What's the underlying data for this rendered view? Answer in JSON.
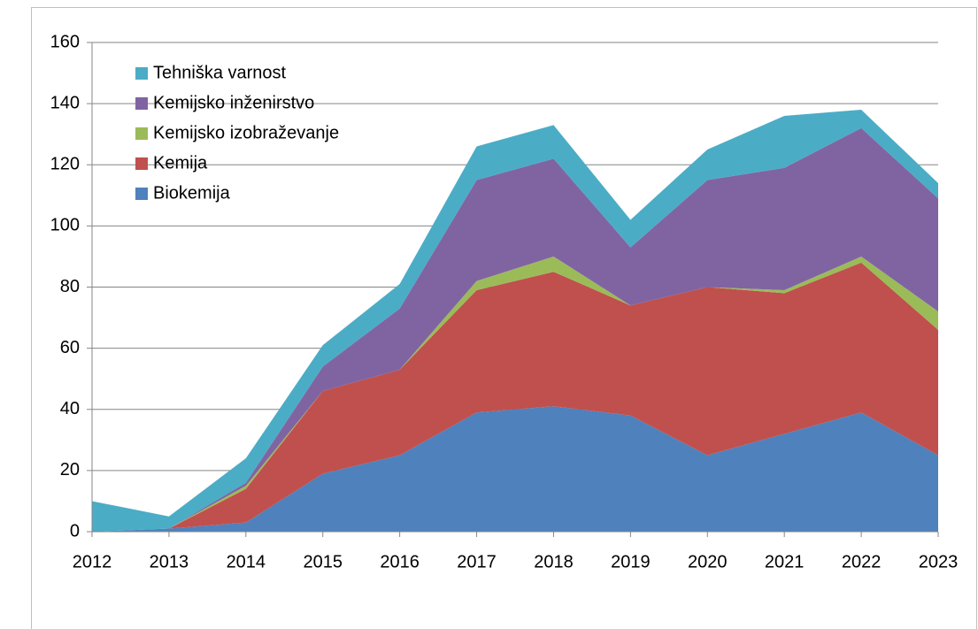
{
  "chart_data": {
    "type": "stacked_area",
    "categories": [
      "2012",
      "2013",
      "2014",
      "2015",
      "2016",
      "2017",
      "2018",
      "2019",
      "2020",
      "2021",
      "2022",
      "2023"
    ],
    "series": [
      {
        "name": "Biokemija",
        "color": "#4f81bd",
        "values": [
          0,
          1,
          3,
          19,
          25,
          39,
          41,
          38,
          25,
          32,
          39,
          25
        ]
      },
      {
        "name": "Kemija",
        "color": "#c0504d",
        "values": [
          0,
          0,
          11,
          27,
          28,
          40,
          44,
          36,
          55,
          46,
          49,
          41
        ]
      },
      {
        "name": "Kemijsko izobraževanje",
        "color": "#9bbb59",
        "values": [
          0,
          0,
          1,
          0,
          0,
          3,
          5,
          0,
          0,
          1,
          2,
          6
        ]
      },
      {
        "name": "Kemijsko inženirstvo",
        "color": "#8064a2",
        "values": [
          0,
          0,
          1,
          8,
          20,
          33,
          32,
          19,
          35,
          40,
          42,
          37
        ]
      },
      {
        "name": "Tehniška varnost",
        "color": "#4bacc6",
        "values": [
          10,
          4,
          8,
          7,
          8,
          11,
          11,
          9,
          10,
          17,
          6,
          5
        ]
      }
    ],
    "ylim": [
      0,
      160
    ],
    "yticks": [
      0,
      20,
      40,
      60,
      80,
      100,
      120,
      140,
      160
    ],
    "grid": true,
    "legend": "upper left"
  }
}
